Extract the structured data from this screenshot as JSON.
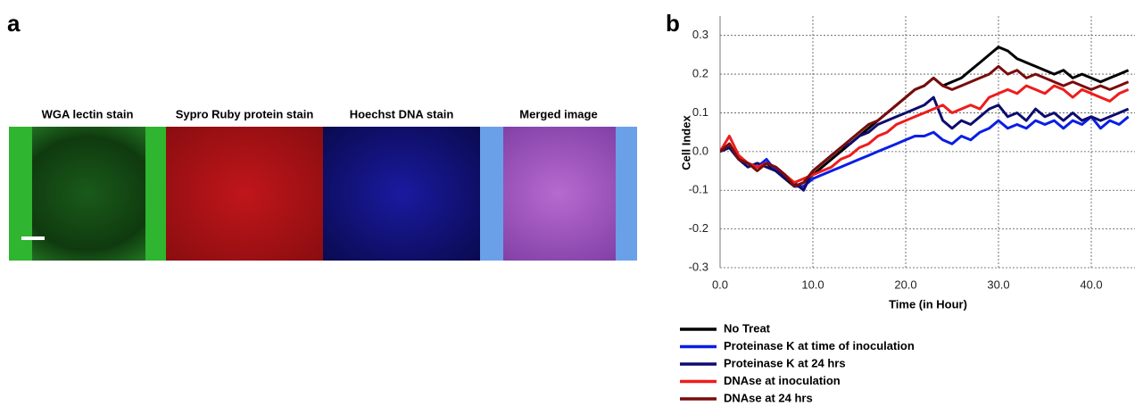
{
  "panel_a": {
    "label": "a",
    "images": [
      {
        "title": "WGA lectin stain"
      },
      {
        "title": "Sypro Ruby protein stain"
      },
      {
        "title": "Hoechst DNA stain"
      },
      {
        "title": "Merged image"
      }
    ]
  },
  "chart_data": {
    "type": "line",
    "panel_label": "b",
    "x_label": "Time (in Hour)",
    "y_label": "Cell Index",
    "x": [
      0,
      1,
      2,
      3,
      4,
      5,
      6,
      7,
      8,
      9,
      10,
      11,
      12,
      13,
      14,
      15,
      16,
      17,
      18,
      19,
      20,
      21,
      22,
      23,
      24,
      25,
      26,
      27,
      28,
      29,
      30,
      31,
      32,
      33,
      34,
      35,
      36,
      37,
      38,
      39,
      40,
      41,
      42,
      43,
      44
    ],
    "series": [
      {
        "name": "No Treat",
        "color": "#000000",
        "values": [
          0,
          0.02,
          -0.02,
          -0.03,
          -0.04,
          -0.03,
          -0.05,
          -0.07,
          -0.09,
          -0.08,
          -0.06,
          -0.04,
          -0.02,
          0,
          0.02,
          0.04,
          0.06,
          0.08,
          0.1,
          0.12,
          0.14,
          0.16,
          0.17,
          0.19,
          0.17,
          0.18,
          0.19,
          0.21,
          0.23,
          0.25,
          0.27,
          0.26,
          0.24,
          0.23,
          0.22,
          0.21,
          0.2,
          0.21,
          0.19,
          0.2,
          0.19,
          0.18,
          0.19,
          0.2,
          0.21
        ]
      },
      {
        "name": "Proteinase K at time of inoculation",
        "color": "#0a1ee6",
        "values": [
          0,
          0.01,
          -0.02,
          -0.03,
          -0.04,
          -0.02,
          -0.05,
          -0.06,
          -0.09,
          -0.09,
          -0.07,
          -0.06,
          -0.05,
          -0.04,
          -0.03,
          -0.02,
          -0.01,
          0,
          0.01,
          0.02,
          0.03,
          0.04,
          0.04,
          0.05,
          0.03,
          0.02,
          0.04,
          0.03,
          0.05,
          0.06,
          0.08,
          0.06,
          0.07,
          0.06,
          0.08,
          0.07,
          0.08,
          0.06,
          0.08,
          0.07,
          0.09,
          0.06,
          0.08,
          0.07,
          0.09
        ]
      },
      {
        "name": "Proteinase K at 24 hrs",
        "color": "#0d0d6e",
        "values": [
          0,
          0.01,
          -0.02,
          -0.04,
          -0.03,
          -0.04,
          -0.05,
          -0.07,
          -0.08,
          -0.1,
          -0.05,
          -0.03,
          -0.01,
          0.01,
          0.02,
          0.04,
          0.05,
          0.07,
          0.08,
          0.09,
          0.1,
          0.11,
          0.12,
          0.14,
          0.08,
          0.06,
          0.08,
          0.07,
          0.09,
          0.11,
          0.12,
          0.09,
          0.1,
          0.08,
          0.11,
          0.09,
          0.1,
          0.08,
          0.1,
          0.08,
          0.09,
          0.08,
          0.09,
          0.1,
          0.11
        ]
      },
      {
        "name": "DNAse at inoculation",
        "color": "#ee1c1c",
        "values": [
          0,
          0.04,
          -0.01,
          -0.03,
          -0.04,
          -0.03,
          -0.04,
          -0.06,
          -0.08,
          -0.07,
          -0.06,
          -0.05,
          -0.04,
          -0.02,
          -0.01,
          0.01,
          0.02,
          0.04,
          0.05,
          0.07,
          0.08,
          0.09,
          0.1,
          0.11,
          0.12,
          0.1,
          0.11,
          0.12,
          0.11,
          0.14,
          0.15,
          0.16,
          0.15,
          0.17,
          0.16,
          0.15,
          0.17,
          0.16,
          0.14,
          0.16,
          0.15,
          0.14,
          0.13,
          0.15,
          0.16
        ]
      },
      {
        "name": "DNAse at 24 hrs",
        "color": "#7a0c0c",
        "values": [
          0,
          0.02,
          -0.02,
          -0.03,
          -0.05,
          -0.03,
          -0.04,
          -0.06,
          -0.09,
          -0.08,
          -0.05,
          -0.03,
          -0.01,
          0.01,
          0.03,
          0.05,
          0.07,
          0.08,
          0.1,
          0.12,
          0.14,
          0.16,
          0.17,
          0.19,
          0.17,
          0.16,
          0.17,
          0.18,
          0.19,
          0.2,
          0.22,
          0.2,
          0.21,
          0.19,
          0.2,
          0.19,
          0.18,
          0.17,
          0.18,
          0.17,
          0.16,
          0.17,
          0.16,
          0.17,
          0.18
        ]
      }
    ],
    "xlim": [
      0,
      44.5
    ],
    "ylim": [
      -0.3,
      0.35
    ],
    "xticks": [
      {
        "value": 0,
        "label": "0.0"
      },
      {
        "value": 10,
        "label": "10.0"
      },
      {
        "value": 20,
        "label": "20.0"
      },
      {
        "value": 30,
        "label": "30.0"
      },
      {
        "value": 40,
        "label": "40.0"
      }
    ],
    "yticks": [
      -0.3,
      -0.2,
      -0.1,
      {
        "value": 0,
        "label": "0.0"
      },
      0.1,
      0.2,
      0.3
    ],
    "grid": true
  }
}
